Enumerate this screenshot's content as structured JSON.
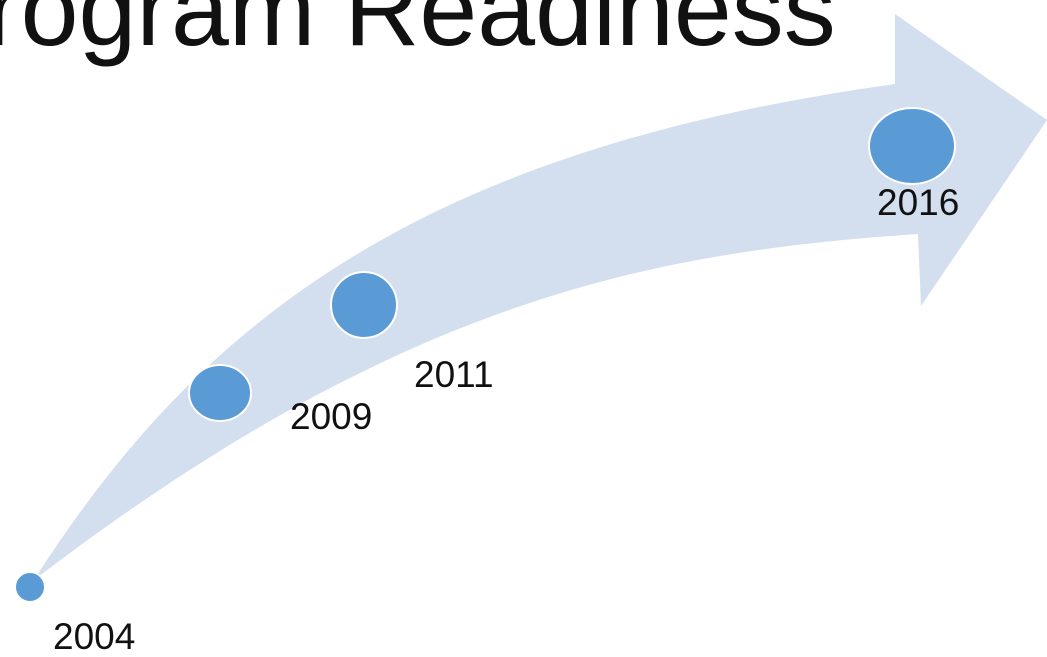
{
  "title": "rogram Readiness",
  "colors": {
    "arrow_fill": "#d3deef",
    "node_fill": "#5b9bd5",
    "node_stroke": "#ffffff",
    "text": "#111111"
  },
  "milestones": [
    {
      "year": "2004"
    },
    {
      "year": "2009"
    },
    {
      "year": "2011"
    },
    {
      "year": "2016"
    }
  ]
}
